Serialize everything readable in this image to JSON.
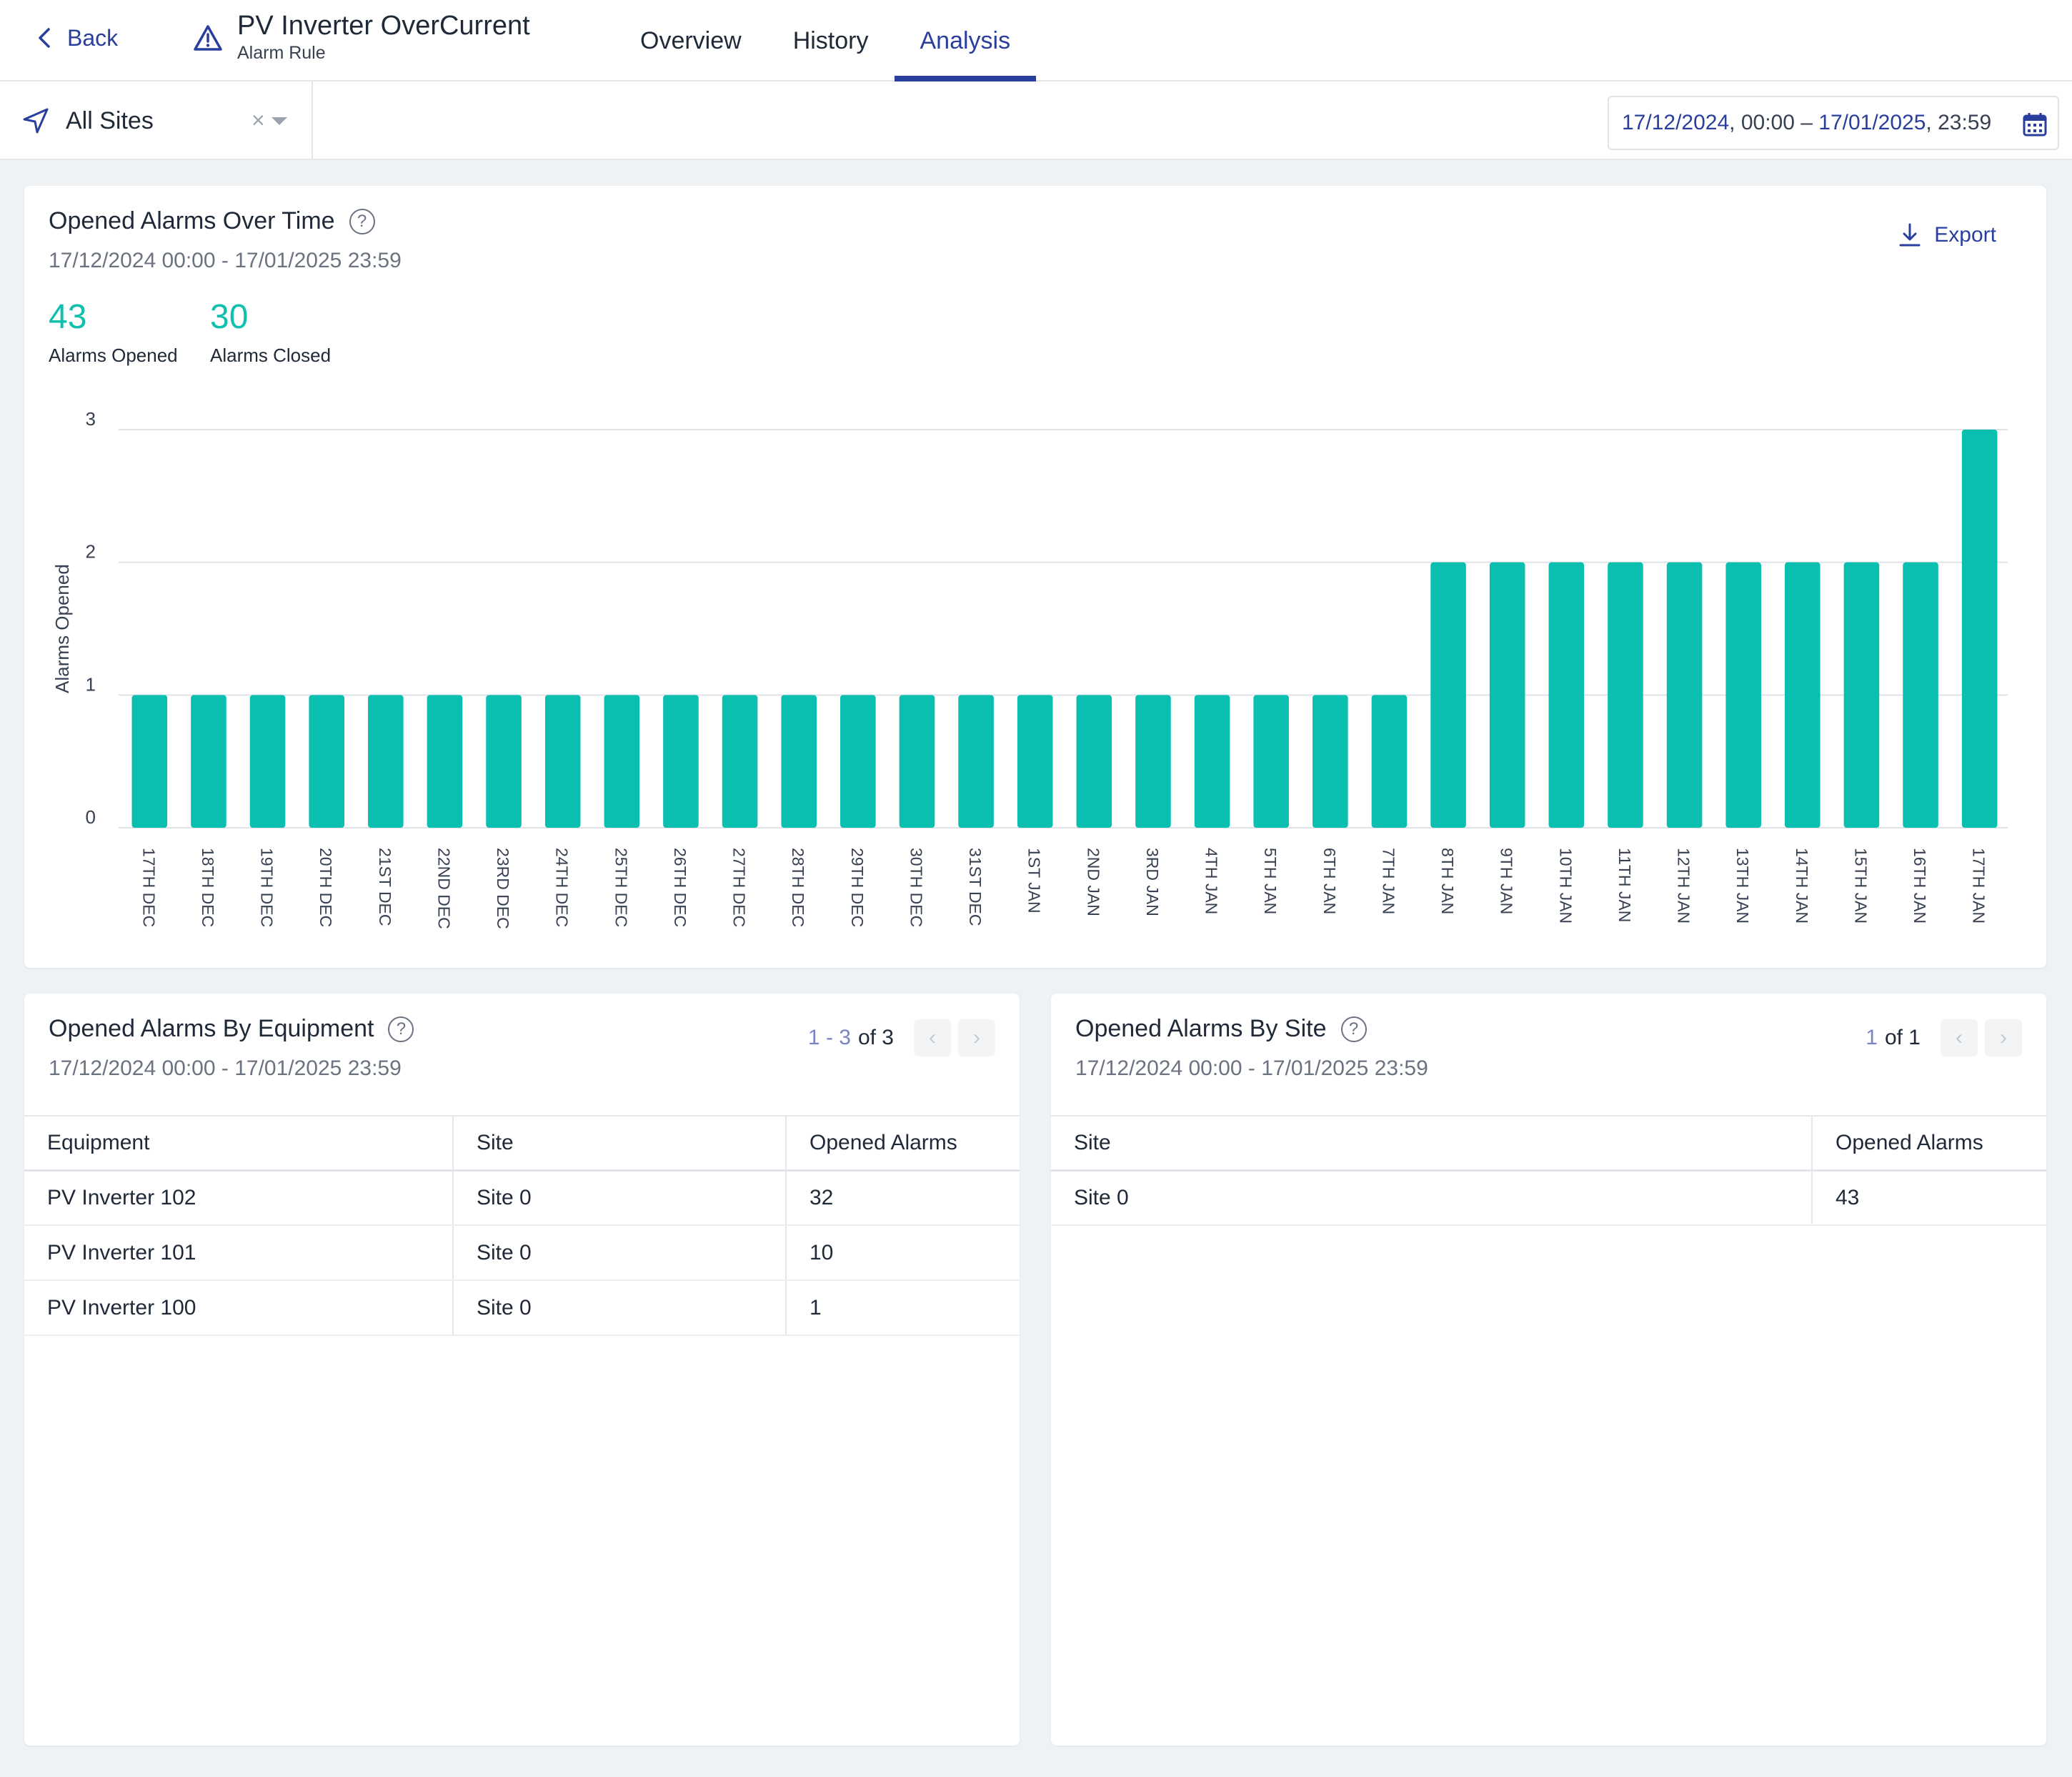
{
  "header": {
    "back_label": "Back",
    "title": "PV Inverter OverCurrent",
    "subtitle": "Alarm Rule",
    "tabs": [
      "Overview",
      "History",
      "Analysis"
    ],
    "active_tab": "Analysis"
  },
  "filter": {
    "site_label": "All Sites",
    "clear_glyph": "×",
    "date_start": "17/12/2024",
    "time_start": ", 00:00 – ",
    "date_end": "17/01/2025",
    "time_end": ", 23:59"
  },
  "over_time": {
    "title": "Opened Alarms Over Time",
    "range": "17/12/2024 00:00 - 17/01/2025 23:59",
    "export_label": "Export",
    "opened_count": "43",
    "opened_label": "Alarms Opened",
    "closed_count": "30",
    "closed_label": "Alarms Closed"
  },
  "chart_data": {
    "type": "bar",
    "ylabel": "Alarms Opened",
    "xlabel": "",
    "ylim": [
      0,
      3
    ],
    "yticks": [
      0,
      1,
      2,
      3
    ],
    "grid": true,
    "color": "#0abfb0",
    "categories": [
      "17TH DEC",
      "18TH DEC",
      "19TH DEC",
      "20TH DEC",
      "21ST DEC",
      "22ND DEC",
      "23RD DEC",
      "24TH DEC",
      "25TH DEC",
      "26TH DEC",
      "27TH DEC",
      "28TH DEC",
      "29TH DEC",
      "30TH DEC",
      "31ST DEC",
      "1ST JAN",
      "2ND JAN",
      "3RD JAN",
      "4TH JAN",
      "5TH JAN",
      "6TH JAN",
      "7TH JAN",
      "8TH JAN",
      "9TH JAN",
      "10TH JAN",
      "11TH JAN",
      "12TH JAN",
      "13TH JAN",
      "14TH JAN",
      "15TH JAN",
      "16TH JAN",
      "17TH JAN"
    ],
    "values": [
      1,
      1,
      1,
      1,
      1,
      1,
      1,
      1,
      1,
      1,
      1,
      1,
      1,
      1,
      1,
      1,
      1,
      1,
      1,
      1,
      1,
      1,
      2,
      2,
      2,
      2,
      2,
      2,
      2,
      2,
      2,
      3
    ]
  },
  "by_equipment": {
    "title": "Opened Alarms By Equipment",
    "range": "17/12/2024 00:00 - 17/01/2025 23:59",
    "pager_range": "1 - 3",
    "pager_total": "of 3",
    "columns": [
      "Equipment",
      "Site",
      "Opened Alarms"
    ],
    "rows": [
      [
        "PV Inverter 102",
        "Site 0",
        "32"
      ],
      [
        "PV Inverter 101",
        "Site 0",
        "10"
      ],
      [
        "PV Inverter 100",
        "Site 0",
        "1"
      ]
    ]
  },
  "by_site": {
    "title": "Opened Alarms By Site",
    "range": "17/12/2024 00:00 - 17/01/2025 23:59",
    "pager_range": "1",
    "pager_total": "of 1",
    "columns": [
      "Site",
      "Opened Alarms"
    ],
    "rows": [
      [
        "Site 0",
        "43"
      ]
    ]
  },
  "icons": {
    "back": "chevron-left-icon",
    "title": "warning-triangle-icon",
    "site": "navigation-arrow-icon",
    "date": "calendar-icon",
    "export": "download-icon",
    "help": "help-circle-icon"
  }
}
